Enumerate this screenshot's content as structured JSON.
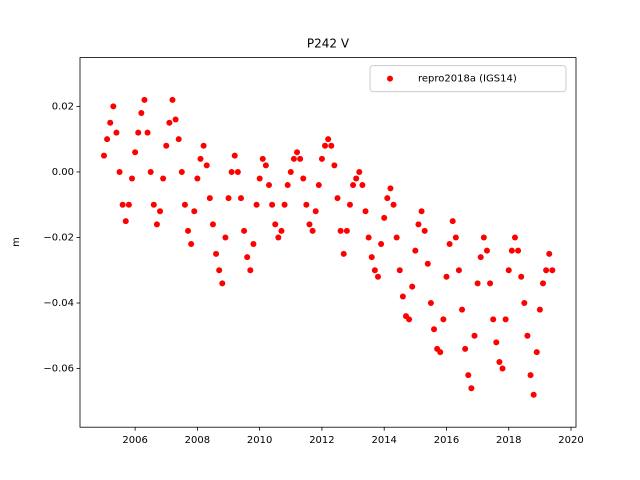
{
  "chart_data": {
    "type": "scatter",
    "title": "P242 V",
    "y_label": "m",
    "xlim": [
      2004.23,
      2020.16
    ],
    "ylim": [
      -0.0779,
      0.0349
    ],
    "xticks": [
      2006,
      2008,
      2010,
      2012,
      2014,
      2016,
      2018,
      2020
    ],
    "yticks": [
      {
        "value": -0.06,
        "label": "−0.06"
      },
      {
        "value": -0.04,
        "label": "−0.04"
      },
      {
        "value": -0.02,
        "label": "−0.02"
      },
      {
        "value": 0,
        "label": "0.00"
      },
      {
        "value": 0.02,
        "label": "0.02"
      }
    ],
    "legend": "upper right",
    "series": [
      {
        "name": "repro2018a (IGS14)",
        "color": "#ff0000",
        "x": [
          2005.0,
          2005.1,
          2005.2,
          2005.3,
          2005.4,
          2005.5,
          2005.6,
          2005.7,
          2005.8,
          2005.9,
          2006.0,
          2006.1,
          2006.2,
          2006.3,
          2006.4,
          2006.5,
          2006.6,
          2006.7,
          2006.8,
          2006.9,
          2007.0,
          2007.1,
          2007.2,
          2007.3,
          2007.4,
          2007.5,
          2007.6,
          2007.7,
          2007.8,
          2007.9,
          2008.0,
          2008.1,
          2008.2,
          2008.3,
          2008.4,
          2008.5,
          2008.6,
          2008.7,
          2008.8,
          2008.9,
          2009.0,
          2009.1,
          2009.2,
          2009.3,
          2009.4,
          2009.5,
          2009.6,
          2009.7,
          2009.8,
          2009.9,
          2010.0,
          2010.1,
          2010.2,
          2010.3,
          2010.4,
          2010.5,
          2010.6,
          2010.7,
          2010.8,
          2010.9,
          2011.0,
          2011.1,
          2011.2,
          2011.3,
          2011.4,
          2011.5,
          2011.6,
          2011.7,
          2011.8,
          2011.9,
          2012.0,
          2012.1,
          2012.2,
          2012.3,
          2012.4,
          2012.5,
          2012.6,
          2012.7,
          2012.8,
          2012.9,
          2013.0,
          2013.1,
          2013.2,
          2013.3,
          2013.4,
          2013.5,
          2013.6,
          2013.7,
          2013.8,
          2013.9,
          2014.0,
          2014.1,
          2014.2,
          2014.3,
          2014.4,
          2014.5,
          2014.6,
          2014.7,
          2014.8,
          2014.9,
          2015.0,
          2015.1,
          2015.2,
          2015.3,
          2015.4,
          2015.5,
          2015.6,
          2015.7,
          2015.8,
          2015.9,
          2016.0,
          2016.1,
          2016.2,
          2016.3,
          2016.4,
          2016.5,
          2016.6,
          2016.7,
          2016.8,
          2016.9,
          2017.0,
          2017.1,
          2017.2,
          2017.3,
          2017.4,
          2017.5,
          2017.6,
          2017.7,
          2017.8,
          2017.9,
          2018.0,
          2018.1,
          2018.2,
          2018.3,
          2018.4,
          2018.5,
          2018.6,
          2018.7,
          2018.8,
          2018.9,
          2019.0,
          2019.1,
          2019.2,
          2019.3,
          2019.4
        ],
        "values": [
          0.005,
          0.01,
          0.015,
          0.02,
          0.012,
          0.0,
          -0.01,
          -0.015,
          -0.01,
          -0.002,
          0.006,
          0.012,
          0.018,
          0.022,
          0.012,
          0.0,
          -0.01,
          -0.016,
          -0.012,
          -0.002,
          0.008,
          0.015,
          0.022,
          0.016,
          0.01,
          0.0,
          -0.01,
          -0.018,
          -0.022,
          -0.012,
          -0.002,
          0.004,
          0.008,
          0.002,
          -0.008,
          -0.016,
          -0.025,
          -0.03,
          -0.034,
          -0.02,
          -0.008,
          0.0,
          0.005,
          0.0,
          -0.008,
          -0.018,
          -0.026,
          -0.03,
          -0.022,
          -0.01,
          -0.002,
          0.004,
          0.002,
          -0.004,
          -0.01,
          -0.016,
          -0.02,
          -0.018,
          -0.01,
          -0.004,
          0.0,
          0.004,
          0.006,
          0.004,
          -0.002,
          -0.01,
          -0.016,
          -0.018,
          -0.012,
          -0.004,
          0.004,
          0.008,
          0.01,
          0.008,
          0.002,
          -0.008,
          -0.018,
          -0.025,
          -0.018,
          -0.01,
          -0.004,
          -0.002,
          0.0,
          -0.004,
          -0.012,
          -0.02,
          -0.026,
          -0.03,
          -0.032,
          -0.022,
          -0.014,
          -0.008,
          -0.005,
          -0.01,
          -0.02,
          -0.03,
          -0.038,
          -0.044,
          -0.045,
          -0.035,
          -0.024,
          -0.016,
          -0.012,
          -0.018,
          -0.028,
          -0.04,
          -0.048,
          -0.054,
          -0.055,
          -0.045,
          -0.032,
          -0.022,
          -0.015,
          -0.02,
          -0.03,
          -0.042,
          -0.054,
          -0.062,
          -0.066,
          -0.05,
          -0.034,
          -0.026,
          -0.02,
          -0.024,
          -0.034,
          -0.045,
          -0.052,
          -0.058,
          -0.06,
          -0.045,
          -0.03,
          -0.024,
          -0.02,
          -0.024,
          -0.032,
          -0.04,
          -0.05,
          -0.062,
          -0.068,
          -0.055,
          -0.042,
          -0.034,
          -0.03,
          -0.025,
          -0.03
        ]
      }
    ]
  }
}
